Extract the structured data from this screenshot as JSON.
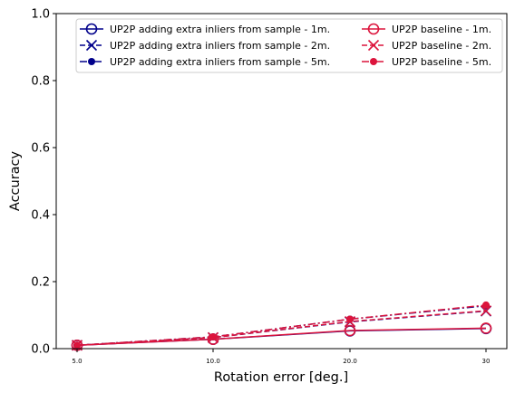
{
  "chart_data": {
    "type": "line",
    "xlabel": "Rotation error [deg.]",
    "ylabel": "Accuracy",
    "categories": [
      "5.0",
      "10.0",
      "20.0",
      "30"
    ],
    "yticks": [
      "0.0",
      "0.2",
      "0.4",
      "0.6",
      "0.8",
      "1.0"
    ],
    "ylim": [
      0,
      1
    ],
    "grid": false,
    "legend_position": "top",
    "series": [
      {
        "name": "UP2P adding extra inliers from sample - 1m.",
        "color": "#00008b",
        "marker": "circle-open",
        "line": "solid",
        "values": [
          0.01,
          0.028,
          0.053,
          0.06
        ]
      },
      {
        "name": "UP2P adding extra inliers from sample - 2m.",
        "color": "#00008b",
        "marker": "x",
        "line": "dashed",
        "values": [
          0.01,
          0.033,
          0.08,
          0.112
        ]
      },
      {
        "name": "UP2P adding extra inliers from sample - 5m.",
        "color": "#00008b",
        "marker": "dot",
        "line": "dashdot",
        "values": [
          0.01,
          0.035,
          0.088,
          0.128
        ]
      },
      {
        "name": "UP2P baseline - 1m.",
        "color": "#dc143c",
        "marker": "circle-open",
        "line": "solid",
        "values": [
          0.01,
          0.028,
          0.054,
          0.061
        ]
      },
      {
        "name": "UP2P baseline - 2m.",
        "color": "#dc143c",
        "marker": "x",
        "line": "dashed",
        "values": [
          0.01,
          0.033,
          0.081,
          0.113
        ]
      },
      {
        "name": "UP2P baseline - 5m.",
        "color": "#dc143c",
        "marker": "dot",
        "line": "dashdot",
        "values": [
          0.01,
          0.035,
          0.088,
          0.13
        ]
      }
    ]
  }
}
